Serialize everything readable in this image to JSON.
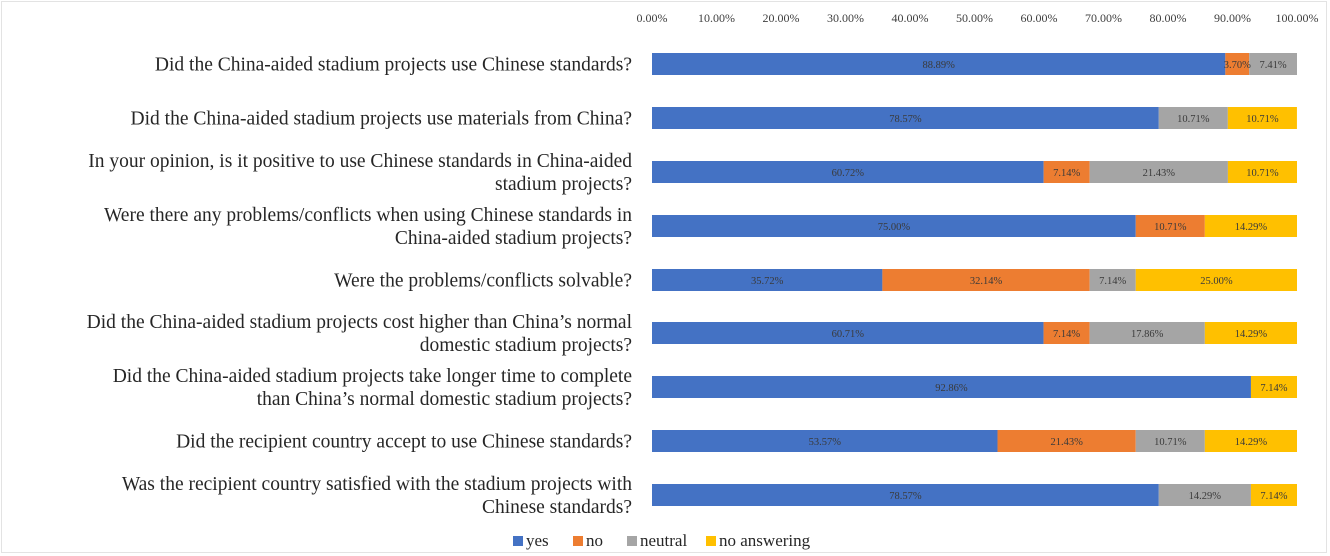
{
  "chart_data": {
    "type": "bar",
    "orientation": "horizontal",
    "stacked": true,
    "title": "",
    "xlabel": "",
    "ylabel": "",
    "xlim": [
      0,
      100
    ],
    "tick_labels": [
      "0.00%",
      "10.00%",
      "20.00%",
      "30.00%",
      "40.00%",
      "50.00%",
      "60.00%",
      "70.00%",
      "80.00%",
      "90.00%",
      "100.00%"
    ],
    "axis_position": "top",
    "grid": false,
    "legend_position": "bottom",
    "categories": [
      [
        "Did the China-aided stadium projects use Chinese standards?"
      ],
      [
        "Did the China-aided stadium projects use materials from China?"
      ],
      [
        "In your opinion, is it positive to use Chinese standards in China-aided",
        "stadium projects?"
      ],
      [
        "Were there any problems/conflicts when using Chinese standards in",
        "China-aided stadium projects?"
      ],
      [
        "Were the problems/conflicts solvable?"
      ],
      [
        "Did the China-aided stadium projects cost higher than China’s normal",
        "domestic stadium projects?"
      ],
      [
        "Did the China-aided stadium projects take longer time to complete",
        "than China’s normal domestic stadium projects?"
      ],
      [
        "Did the recipient country accept to use Chinese standards?"
      ],
      [
        "Was the recipient country satisfied with the stadium projects with",
        "Chinese standards?"
      ]
    ],
    "series": [
      {
        "name": "yes",
        "color": "#4472C4",
        "values": [
          88.89,
          78.57,
          60.72,
          75.0,
          35.72,
          60.71,
          92.86,
          53.57,
          78.57
        ],
        "labels": [
          "88.89%",
          "78.57%",
          "60.72%",
          "75.00%",
          "35.72%",
          "60.71%",
          "92.86%",
          "53.57%",
          "78.57%"
        ]
      },
      {
        "name": "no",
        "color": "#ED7D31",
        "values": [
          3.7,
          0,
          7.14,
          10.71,
          32.14,
          7.14,
          0,
          21.43,
          0
        ],
        "labels": [
          "3.70%",
          "",
          "7.14%",
          "10.71%",
          "32.14%",
          "7.14%",
          "",
          "21.43%",
          ""
        ]
      },
      {
        "name": "neutral",
        "color": "#A5A5A5",
        "values": [
          7.41,
          10.71,
          21.43,
          0,
          7.14,
          17.86,
          0,
          10.71,
          14.29
        ],
        "labels": [
          "7.41%",
          "10.71%",
          "21.43%",
          "",
          "7.14%",
          "17.86%",
          "",
          "10.71%",
          "14.29%"
        ]
      },
      {
        "name": "no answering",
        "color": "#FFC000",
        "values": [
          0,
          10.71,
          10.71,
          14.29,
          25.0,
          14.29,
          7.14,
          14.29,
          7.14
        ],
        "labels": [
          "",
          "10.71%",
          "10.71%",
          "14.29%",
          "25.00%",
          "14.29%",
          "7.14%",
          "14.29%",
          "7.14%"
        ]
      }
    ]
  }
}
